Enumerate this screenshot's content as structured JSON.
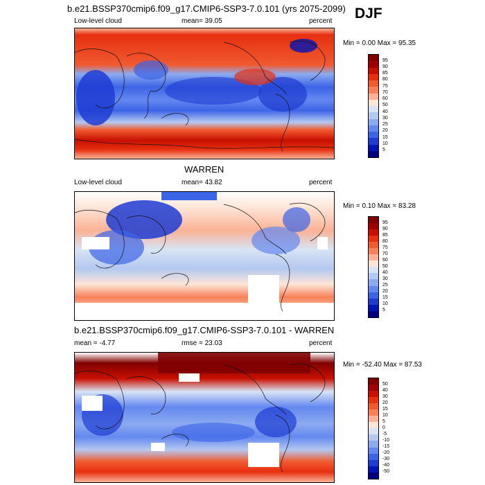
{
  "page_title": "b.e21.BSSP370cmip6.f09_g17.CMIP6-SSP3-7.0.101 (yrs 2075-2099)",
  "season": "DJF",
  "panels": [
    {
      "title": "",
      "left_label": "Low-level cloud",
      "center_label": "mean=  39.05",
      "right_label": "percent",
      "minmax": "Min =   0.00 Max =  95.35",
      "ticks": [
        "95",
        "90",
        "85",
        "80",
        "75",
        "70",
        "60",
        "50",
        "40",
        "30",
        "25",
        "20",
        "15",
        "10",
        "5"
      ]
    },
    {
      "title": "WARREN",
      "left_label": "Low-level cloud",
      "center_label": "mean=  43.82",
      "right_label": "percent",
      "minmax": "Min =   0.10 Max =  83.28",
      "ticks": [
        "95",
        "90",
        "85",
        "80",
        "75",
        "70",
        "60",
        "50",
        "40",
        "30",
        "25",
        "20",
        "15",
        "10",
        "5"
      ]
    },
    {
      "title": "b.e21.BSSP370cmip6.f09_g17.CMIP6-SSP3-7.0.101 - WARREN",
      "left_label": "mean =  -4.77",
      "center_label": "rmse =  23.03",
      "right_label": "percent",
      "minmax": "Min = -52.40 Max =  87.53",
      "ticks": [
        "50",
        "40",
        "30",
        "20",
        "15",
        "10",
        "5",
        "0",
        "-5",
        "-10",
        "-15",
        "-20",
        "-30",
        "-40",
        "-50"
      ]
    }
  ],
  "palette": [
    "#800000",
    "#a00000",
    "#c81000",
    "#e63010",
    "#f05a30",
    "#f7825a",
    "#fab296",
    "#fde6d8",
    "#d8e4f4",
    "#b4c8f0",
    "#8caaf0",
    "#6488f0",
    "#3c64e6",
    "#1e3cd2",
    "#0014b4",
    "#000080"
  ]
}
